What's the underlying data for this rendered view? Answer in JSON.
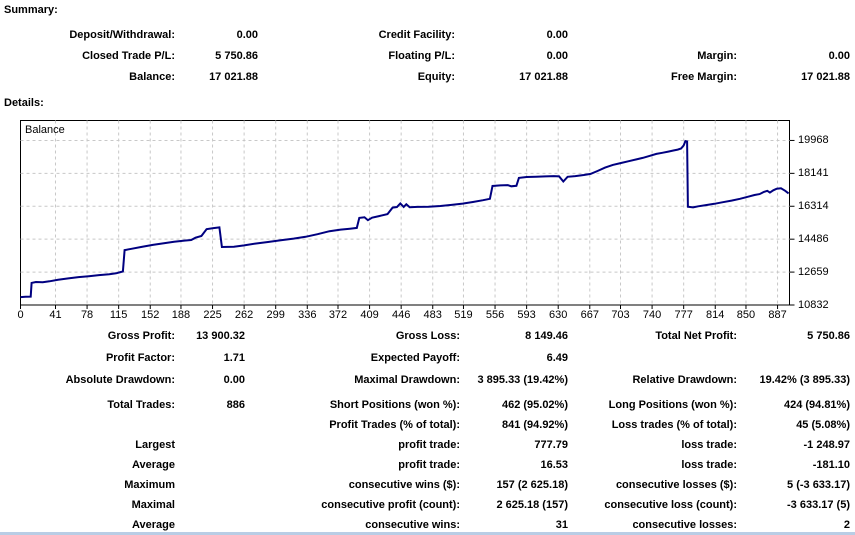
{
  "summary": {
    "heading": "Summary:",
    "rows": [
      [
        "Deposit/Withdrawal:",
        "0.00",
        "Credit Facility:",
        "0.00",
        "",
        ""
      ],
      [
        "Closed Trade P/L:",
        "5 750.86",
        "Floating P/L:",
        "0.00",
        "Margin:",
        "0.00"
      ],
      [
        "Balance:",
        "17 021.88",
        "Equity:",
        "17 021.88",
        "Free Margin:",
        "17 021.88"
      ]
    ]
  },
  "details": {
    "heading": "Details:",
    "rows_group_a": [
      [
        "Gross Profit:",
        "13 900.32",
        "Gross Loss:",
        "8 149.46",
        "Total Net Profit:",
        "5 750.86"
      ],
      [
        "Profit Factor:",
        "1.71",
        "Expected Payoff:",
        "6.49",
        "",
        ""
      ],
      [
        "Absolute Drawdown:",
        "0.00",
        "Maximal Drawdown:",
        "3 895.33 (19.42%)",
        "Relative Drawdown:",
        "19.42% (3 895.33)"
      ]
    ],
    "rows_group_b": [
      [
        "Total Trades:",
        "886",
        "Short Positions (won %):",
        "462 (95.02%)",
        "Long Positions (won %):",
        "424 (94.81%)"
      ],
      [
        "",
        "",
        "Profit Trades (% of total):",
        "841 (94.92%)",
        "Loss trades (% of total):",
        "45 (5.08%)"
      ],
      [
        "Largest",
        "",
        "profit trade:",
        "777.79",
        "loss trade:",
        "-1 248.97"
      ],
      [
        "Average",
        "",
        "profit trade:",
        "16.53",
        "loss trade:",
        "-181.10"
      ],
      [
        "Maximum",
        "",
        "consecutive wins ($):",
        "157 (2 625.18)",
        "consecutive losses ($):",
        "5 (-3 633.17)"
      ],
      [
        "Maximal",
        "",
        "consecutive profit (count):",
        "2 625.18 (157)",
        "consecutive loss (count):",
        "-3 633.17 (5)"
      ],
      [
        "Average",
        "",
        "consecutive wins:",
        "31",
        "consecutive losses:",
        "2"
      ]
    ]
  },
  "chart_data": {
    "type": "line",
    "series_label": "Balance",
    "x_ticks": [
      0,
      41,
      78,
      115,
      152,
      188,
      225,
      262,
      299,
      336,
      372,
      409,
      446,
      483,
      519,
      556,
      593,
      630,
      667,
      703,
      740,
      777,
      814,
      850,
      887
    ],
    "y_ticks": [
      10832,
      12659,
      14486,
      16314,
      18141,
      19968
    ],
    "x_range": [
      0,
      901
    ],
    "y_range": [
      10832,
      21075
    ],
    "grid": true,
    "points": [
      [
        0,
        11271
      ],
      [
        6,
        11285
      ],
      [
        12,
        11300
      ],
      [
        13,
        12060
      ],
      [
        18,
        12110
      ],
      [
        26,
        12090
      ],
      [
        34,
        12150
      ],
      [
        44,
        12230
      ],
      [
        56,
        12310
      ],
      [
        68,
        12380
      ],
      [
        80,
        12430
      ],
      [
        92,
        12490
      ],
      [
        104,
        12540
      ],
      [
        112,
        12590
      ],
      [
        117,
        12660
      ],
      [
        120,
        12690
      ],
      [
        122,
        13880
      ],
      [
        130,
        13950
      ],
      [
        142,
        14060
      ],
      [
        155,
        14170
      ],
      [
        168,
        14260
      ],
      [
        180,
        14340
      ],
      [
        192,
        14410
      ],
      [
        200,
        14440
      ],
      [
        205,
        14570
      ],
      [
        212,
        14660
      ],
      [
        218,
        15040
      ],
      [
        226,
        15100
      ],
      [
        233,
        15140
      ],
      [
        236,
        14050
      ],
      [
        250,
        14070
      ],
      [
        262,
        14140
      ],
      [
        275,
        14240
      ],
      [
        290,
        14330
      ],
      [
        305,
        14430
      ],
      [
        320,
        14520
      ],
      [
        334,
        14620
      ],
      [
        348,
        14760
      ],
      [
        362,
        14930
      ],
      [
        375,
        15020
      ],
      [
        386,
        15070
      ],
      [
        394,
        15110
      ],
      [
        397,
        15670
      ],
      [
        403,
        15700
      ],
      [
        407,
        15540
      ],
      [
        412,
        15680
      ],
      [
        420,
        15770
      ],
      [
        430,
        15880
      ],
      [
        436,
        16240
      ],
      [
        441,
        16270
      ],
      [
        445,
        16470
      ],
      [
        449,
        16280
      ],
      [
        452,
        16430
      ],
      [
        456,
        16260
      ],
      [
        465,
        16280
      ],
      [
        478,
        16290
      ],
      [
        492,
        16330
      ],
      [
        505,
        16390
      ],
      [
        518,
        16460
      ],
      [
        530,
        16550
      ],
      [
        542,
        16650
      ],
      [
        550,
        16730
      ],
      [
        553,
        17440
      ],
      [
        562,
        17470
      ],
      [
        571,
        17490
      ],
      [
        575,
        17420
      ],
      [
        581,
        17450
      ],
      [
        584,
        17890
      ],
      [
        593,
        17940
      ],
      [
        604,
        17950
      ],
      [
        615,
        17970
      ],
      [
        625,
        17990
      ],
      [
        631,
        17970
      ],
      [
        636,
        17690
      ],
      [
        641,
        17950
      ],
      [
        650,
        17990
      ],
      [
        660,
        18050
      ],
      [
        668,
        18110
      ],
      [
        676,
        18270
      ],
      [
        685,
        18460
      ],
      [
        694,
        18610
      ],
      [
        703,
        18710
      ],
      [
        712,
        18810
      ],
      [
        721,
        18910
      ],
      [
        729,
        19000
      ],
      [
        737,
        19110
      ],
      [
        745,
        19220
      ],
      [
        752,
        19280
      ],
      [
        759,
        19350
      ],
      [
        765,
        19410
      ],
      [
        770,
        19460
      ],
      [
        774,
        19520
      ],
      [
        777,
        19690
      ],
      [
        779,
        19930
      ],
      [
        781,
        19910
      ],
      [
        782,
        16290
      ],
      [
        788,
        16250
      ],
      [
        794,
        16310
      ],
      [
        803,
        16380
      ],
      [
        813,
        16450
      ],
      [
        823,
        16540
      ],
      [
        833,
        16630
      ],
      [
        843,
        16730
      ],
      [
        852,
        16840
      ],
      [
        860,
        16940
      ],
      [
        866,
        16990
      ],
      [
        871,
        17110
      ],
      [
        875,
        17170
      ],
      [
        878,
        17070
      ],
      [
        882,
        17200
      ],
      [
        886,
        17290
      ],
      [
        891,
        17310
      ],
      [
        896,
        17170
      ],
      [
        900,
        17030
      ]
    ]
  },
  "colors": {
    "line": "#000080",
    "grid": "#c8c8c8",
    "plot_border": "#000000",
    "bottom_bar": "#b9cde5"
  }
}
